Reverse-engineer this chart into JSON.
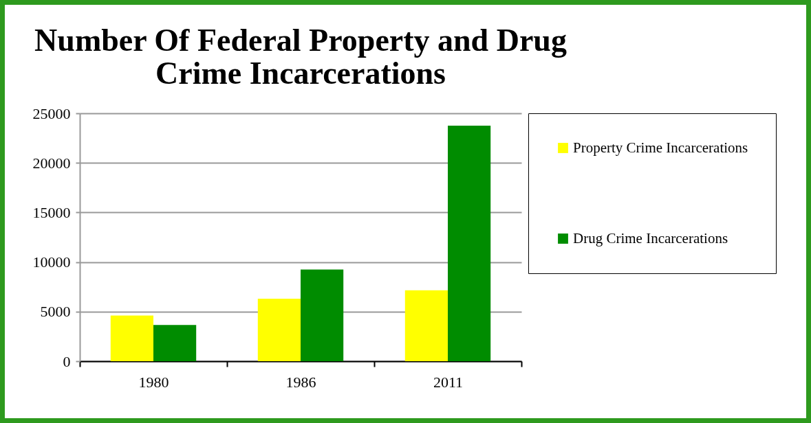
{
  "chart_data": {
    "type": "bar",
    "title": "Number Of Federal Property and Drug Crime Incarcerations",
    "categories": [
      "1980",
      "1986",
      "2011"
    ],
    "series": [
      {
        "name": "Property Crime Incarcerations",
        "color": "#ffff00",
        "values": [
          4600,
          6300,
          7150
        ]
      },
      {
        "name": "Drug Crime Incarcerations",
        "color": "#008c00",
        "values": [
          3650,
          9250,
          23750
        ]
      }
    ],
    "ylim": [
      0,
      25000
    ],
    "yticks": [
      0,
      5000,
      10000,
      15000,
      20000,
      25000
    ],
    "grid": "y",
    "legend": "right"
  }
}
